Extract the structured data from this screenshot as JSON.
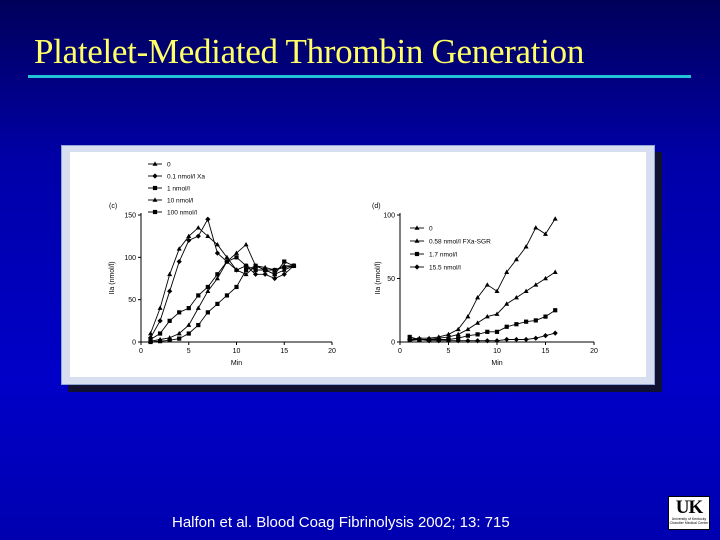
{
  "slide": {
    "title": "Platelet-Mediated Thrombin Generation",
    "citation": "Halfon et al.  Blood Coag Fibrinolysis 2002; 13: 715",
    "logo": {
      "mark": "UK",
      "sub1": "University of Kentucky",
      "sub2": "Chandler Medical Center"
    }
  },
  "chart_data": [
    {
      "type": "line",
      "panel_label": "(c)",
      "xlabel": "Min",
      "ylabel": "IIa (nmol/l)",
      "xlim": [
        0,
        20
      ],
      "ylim": [
        0,
        150
      ],
      "xticks": [
        0,
        5,
        10,
        15,
        20
      ],
      "yticks": [
        0,
        50,
        100,
        150
      ],
      "legend_position": "top",
      "series": [
        {
          "name": "0",
          "marker": "triangle",
          "x": [
            1,
            2,
            3,
            4,
            5,
            6,
            7,
            8,
            9,
            10,
            11,
            12,
            13,
            14,
            15,
            16
          ],
          "y": [
            10,
            40,
            80,
            110,
            125,
            135,
            125,
            115,
            100,
            85,
            80,
            90,
            85,
            80,
            85,
            90
          ]
        },
        {
          "name": "0.1 nmol/l Xa",
          "marker": "diamond",
          "x": [
            1,
            2,
            3,
            4,
            5,
            6,
            7,
            8,
            9,
            10,
            11,
            12,
            13,
            14,
            15,
            16
          ],
          "y": [
            5,
            25,
            60,
            95,
            120,
            125,
            145,
            105,
            95,
            85,
            90,
            80,
            80,
            75,
            80,
            90
          ]
        },
        {
          "name": "1 nmol/l",
          "marker": "square",
          "x": [
            1,
            2,
            3,
            4,
            5,
            6,
            7,
            8,
            9,
            10,
            11,
            12,
            13,
            14,
            15,
            16
          ],
          "y": [
            3,
            10,
            25,
            35,
            40,
            55,
            65,
            80,
            95,
            100,
            90,
            85,
            85,
            80,
            95,
            90
          ]
        },
        {
          "name": "10 nmol/l",
          "marker": "triangle",
          "x": [
            1,
            2,
            3,
            4,
            5,
            6,
            7,
            8,
            9,
            10,
            11,
            12,
            13,
            14,
            15,
            16
          ],
          "y": [
            1,
            3,
            5,
            10,
            20,
            40,
            60,
            75,
            95,
            105,
            115,
            90,
            88,
            85,
            90,
            90
          ]
        },
        {
          "name": "100 nmol/l",
          "marker": "square",
          "x": [
            1,
            2,
            3,
            4,
            5,
            6,
            7,
            8,
            9,
            10,
            11,
            12,
            13,
            14,
            15,
            16
          ],
          "y": [
            0,
            1,
            2,
            4,
            10,
            20,
            35,
            45,
            55,
            65,
            85,
            90,
            85,
            85,
            88,
            90
          ]
        }
      ]
    },
    {
      "type": "line",
      "panel_label": "(d)",
      "xlabel": "Min",
      "ylabel": "IIa (nmol/l)",
      "xlim": [
        0,
        20
      ],
      "ylim": [
        0,
        100
      ],
      "xticks": [
        0,
        5,
        10,
        15,
        20
      ],
      "yticks": [
        0,
        50,
        100
      ],
      "legend_position": "top-left",
      "series": [
        {
          "name": "0",
          "marker": "triangle",
          "x": [
            1,
            2,
            3,
            4,
            5,
            6,
            7,
            8,
            9,
            10,
            11,
            12,
            13,
            14,
            15,
            16
          ],
          "y": [
            2,
            3,
            3,
            4,
            6,
            10,
            20,
            35,
            45,
            40,
            55,
            65,
            75,
            90,
            85,
            97
          ]
        },
        {
          "name": "0.58 nmol/l FXa-SGR",
          "marker": "triangle",
          "x": [
            1,
            2,
            3,
            4,
            5,
            6,
            7,
            8,
            9,
            10,
            11,
            12,
            13,
            14,
            15,
            16
          ],
          "y": [
            1,
            2,
            2,
            3,
            4,
            6,
            10,
            15,
            20,
            22,
            30,
            35,
            40,
            45,
            50,
            55
          ]
        },
        {
          "name": "1.7 nmol/l",
          "marker": "square",
          "x": [
            1,
            2,
            3,
            4,
            5,
            6,
            7,
            8,
            9,
            10,
            11,
            12,
            13,
            14,
            15,
            16
          ],
          "y": [
            4,
            2,
            2,
            2,
            2,
            3,
            5,
            6,
            8,
            8,
            12,
            14,
            16,
            17,
            20,
            25
          ]
        },
        {
          "name": "15.5 nmol/l",
          "marker": "diamond",
          "x": [
            1,
            2,
            3,
            4,
            5,
            6,
            7,
            8,
            9,
            10,
            11,
            12,
            13,
            14,
            15,
            16
          ],
          "y": [
            2,
            2,
            1,
            1,
            1,
            1,
            1,
            1,
            1,
            1,
            2,
            2,
            2,
            3,
            5,
            7
          ]
        }
      ]
    }
  ]
}
